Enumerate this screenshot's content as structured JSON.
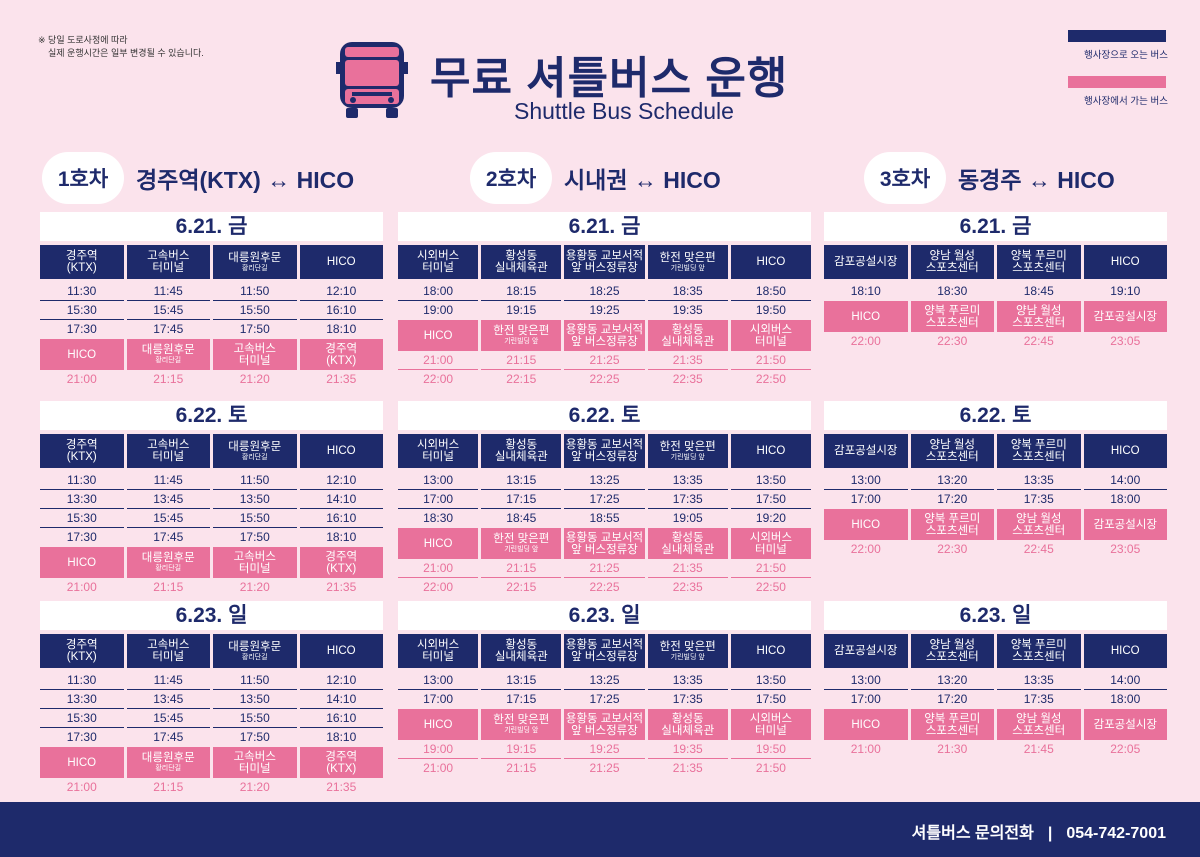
{
  "notice": {
    "line1": "※ 당일 도로사정에 따라",
    "line2": "실제 운행시간은 일부 변경될 수 있습니다."
  },
  "title": {
    "main": "무료 셔틀버스 운행",
    "sub": "Shuttle Bus Schedule"
  },
  "legend": {
    "to_venue": "행사장으로 오는 버스",
    "from_venue": "행사장에서 가는 버스"
  },
  "colors": {
    "navy": "#1e2a6b",
    "pink": "#e9719b",
    "background": "#fbe3ec"
  },
  "routes": [
    {
      "car": "1호차",
      "name": "경주역(KTX) ↔ HICO",
      "days": [
        {
          "date": "6.21. 금",
          "out_headers": [
            [
              "경주역",
              "(KTX)"
            ],
            [
              "고속버스",
              "터미널"
            ],
            [
              "대릉원후문",
              "",
              "황리단길"
            ],
            [
              "HICO"
            ]
          ],
          "out_rows": [
            [
              "11:30",
              "11:45",
              "11:50",
              "12:10"
            ],
            [
              "15:30",
              "15:45",
              "15:50",
              "16:10"
            ],
            [
              "17:30",
              "17:45",
              "17:50",
              "18:10"
            ]
          ],
          "ret_headers": [
            [
              "HICO"
            ],
            [
              "대릉원후문",
              "",
              "황리단길"
            ],
            [
              "고속버스",
              "터미널"
            ],
            [
              "경주역",
              "(KTX)"
            ]
          ],
          "ret_rows": [
            [
              "21:00",
              "21:15",
              "21:20",
              "21:35"
            ]
          ]
        },
        {
          "date": "6.22. 토",
          "out_headers": [
            [
              "경주역",
              "(KTX)"
            ],
            [
              "고속버스",
              "터미널"
            ],
            [
              "대릉원후문",
              "",
              "황리단길"
            ],
            [
              "HICO"
            ]
          ],
          "out_rows": [
            [
              "11:30",
              "11:45",
              "11:50",
              "12:10"
            ],
            [
              "13:30",
              "13:45",
              "13:50",
              "14:10"
            ],
            [
              "15:30",
              "15:45",
              "15:50",
              "16:10"
            ],
            [
              "17:30",
              "17:45",
              "17:50",
              "18:10"
            ]
          ],
          "ret_headers": [
            [
              "HICO"
            ],
            [
              "대릉원후문",
              "",
              "황리단길"
            ],
            [
              "고속버스",
              "터미널"
            ],
            [
              "경주역",
              "(KTX)"
            ]
          ],
          "ret_rows": [
            [
              "21:00",
              "21:15",
              "21:20",
              "21:35"
            ]
          ]
        },
        {
          "date": "6.23. 일",
          "out_headers": [
            [
              "경주역",
              "(KTX)"
            ],
            [
              "고속버스",
              "터미널"
            ],
            [
              "대릉원후문",
              "",
              "황리단길"
            ],
            [
              "HICO"
            ]
          ],
          "out_rows": [
            [
              "11:30",
              "11:45",
              "11:50",
              "12:10"
            ],
            [
              "13:30",
              "13:45",
              "13:50",
              "14:10"
            ],
            [
              "15:30",
              "15:45",
              "15:50",
              "16:10"
            ],
            [
              "17:30",
              "17:45",
              "17:50",
              "18:10"
            ]
          ],
          "ret_headers": [
            [
              "HICO"
            ],
            [
              "대릉원후문",
              "",
              "황리단길"
            ],
            [
              "고속버스",
              "터미널"
            ],
            [
              "경주역",
              "(KTX)"
            ]
          ],
          "ret_rows": [
            [
              "21:00",
              "21:15",
              "21:20",
              "21:35"
            ]
          ]
        }
      ]
    },
    {
      "car": "2호차",
      "name": "시내권 ↔ HICO",
      "days": [
        {
          "date": "6.21. 금",
          "out_headers": [
            [
              "시외버스",
              "터미널"
            ],
            [
              "황성동",
              "실내체육관"
            ],
            [
              "용황동 교보서적",
              "앞 버스정류장"
            ],
            [
              "한전 맞은편",
              "",
              "기린빌딩 앞"
            ],
            [
              "HICO"
            ]
          ],
          "out_rows": [
            [
              "18:00",
              "18:15",
              "18:25",
              "18:35",
              "18:50"
            ],
            [
              "19:00",
              "19:15",
              "19:25",
              "19:35",
              "19:50"
            ]
          ],
          "ret_headers": [
            [
              "HICO"
            ],
            [
              "한전 맞은편",
              "",
              "기린빌딩 앞"
            ],
            [
              "용황동 교보서적",
              "앞 버스정류장"
            ],
            [
              "황성동",
              "실내체육관"
            ],
            [
              "시외버스",
              "터미널"
            ]
          ],
          "ret_rows": [
            [
              "21:00",
              "21:15",
              "21:25",
              "21:35",
              "21:50"
            ],
            [
              "22:00",
              "22:15",
              "22:25",
              "22:35",
              "22:50"
            ]
          ]
        },
        {
          "date": "6.22. 토",
          "out_headers": [
            [
              "시외버스",
              "터미널"
            ],
            [
              "황성동",
              "실내체육관"
            ],
            [
              "용황동 교보서적",
              "앞 버스정류장"
            ],
            [
              "한전 맞은편",
              "",
              "기린빌딩 앞"
            ],
            [
              "HICO"
            ]
          ],
          "out_rows": [
            [
              "13:00",
              "13:15",
              "13:25",
              "13:35",
              "13:50"
            ],
            [
              "17:00",
              "17:15",
              "17:25",
              "17:35",
              "17:50"
            ],
            [
              "18:30",
              "18:45",
              "18:55",
              "19:05",
              "19:20"
            ]
          ],
          "ret_headers": [
            [
              "HICO"
            ],
            [
              "한전 맞은편",
              "",
              "기린빌딩 앞"
            ],
            [
              "용황동 교보서적",
              "앞 버스정류장"
            ],
            [
              "황성동",
              "실내체육관"
            ],
            [
              "시외버스",
              "터미널"
            ]
          ],
          "ret_rows": [
            [
              "21:00",
              "21:15",
              "21:25",
              "21:35",
              "21:50"
            ],
            [
              "22:00",
              "22:15",
              "22:25",
              "22:35",
              "22:50"
            ]
          ]
        },
        {
          "date": "6.23. 일",
          "out_headers": [
            [
              "시외버스",
              "터미널"
            ],
            [
              "황성동",
              "실내체육관"
            ],
            [
              "용황동 교보서적",
              "앞 버스정류장"
            ],
            [
              "한전 맞은편",
              "",
              "기린빌딩 앞"
            ],
            [
              "HICO"
            ]
          ],
          "out_rows": [
            [
              "13:00",
              "13:15",
              "13:25",
              "13:35",
              "13:50"
            ],
            [
              "17:00",
              "17:15",
              "17:25",
              "17:35",
              "17:50"
            ]
          ],
          "ret_headers": [
            [
              "HICO"
            ],
            [
              "한전 맞은편",
              "",
              "기린빌딩 앞"
            ],
            [
              "용황동 교보서적",
              "앞 버스정류장"
            ],
            [
              "황성동",
              "실내체육관"
            ],
            [
              "시외버스",
              "터미널"
            ]
          ],
          "ret_rows": [
            [
              "19:00",
              "19:15",
              "19:25",
              "19:35",
              "19:50"
            ],
            [
              "21:00",
              "21:15",
              "21:25",
              "21:35",
              "21:50"
            ]
          ]
        }
      ]
    },
    {
      "car": "3호차",
      "name": "동경주 ↔ HICO",
      "days": [
        {
          "date": "6.21. 금",
          "out_headers": [
            [
              "감포공설시장"
            ],
            [
              "양남 월성",
              "스포츠센터"
            ],
            [
              "양북 푸르미",
              "스포츠센터"
            ],
            [
              "HICO"
            ]
          ],
          "out_rows": [
            [
              "18:10",
              "18:30",
              "18:45",
              "19:10"
            ]
          ],
          "ret_headers": [
            [
              "HICO"
            ],
            [
              "양북 푸르미",
              "스포츠센터"
            ],
            [
              "양남 월성",
              "스포츠센터"
            ],
            [
              "감포공설시장"
            ]
          ],
          "ret_rows": [
            [
              "22:00",
              "22:30",
              "22:45",
              "23:05"
            ]
          ]
        },
        {
          "date": "6.22. 토",
          "out_headers": [
            [
              "감포공설시장"
            ],
            [
              "양남 월성",
              "스포츠센터"
            ],
            [
              "양북 푸르미",
              "스포츠센터"
            ],
            [
              "HICO"
            ]
          ],
          "out_rows": [
            [
              "13:00",
              "13:20",
              "13:35",
              "14:00"
            ],
            [
              "17:00",
              "17:20",
              "17:35",
              "18:00"
            ]
          ],
          "ret_headers": [
            [
              "HICO"
            ],
            [
              "양북 푸르미",
              "스포츠센터"
            ],
            [
              "양남 월성",
              "스포츠센터"
            ],
            [
              "감포공설시장"
            ]
          ],
          "ret_rows": [
            [
              "22:00",
              "22:30",
              "22:45",
              "23:05"
            ]
          ]
        },
        {
          "date": "6.23. 일",
          "out_headers": [
            [
              "감포공설시장"
            ],
            [
              "양남 월성",
              "스포츠센터"
            ],
            [
              "양북 푸르미",
              "스포츠센터"
            ],
            [
              "HICO"
            ]
          ],
          "out_rows": [
            [
              "13:00",
              "13:20",
              "13:35",
              "14:00"
            ],
            [
              "17:00",
              "17:20",
              "17:35",
              "18:00"
            ]
          ],
          "ret_headers": [
            [
              "HICO"
            ],
            [
              "양북 푸르미",
              "스포츠센터"
            ],
            [
              "양남 월성",
              "스포츠센터"
            ],
            [
              "감포공설시장"
            ]
          ],
          "ret_rows": [
            [
              "21:00",
              "21:30",
              "21:45",
              "22:05"
            ]
          ]
        }
      ]
    }
  ],
  "footer": {
    "label": "셔틀버스 문의전화",
    "separator": "|",
    "phone": "054-742-7001"
  }
}
